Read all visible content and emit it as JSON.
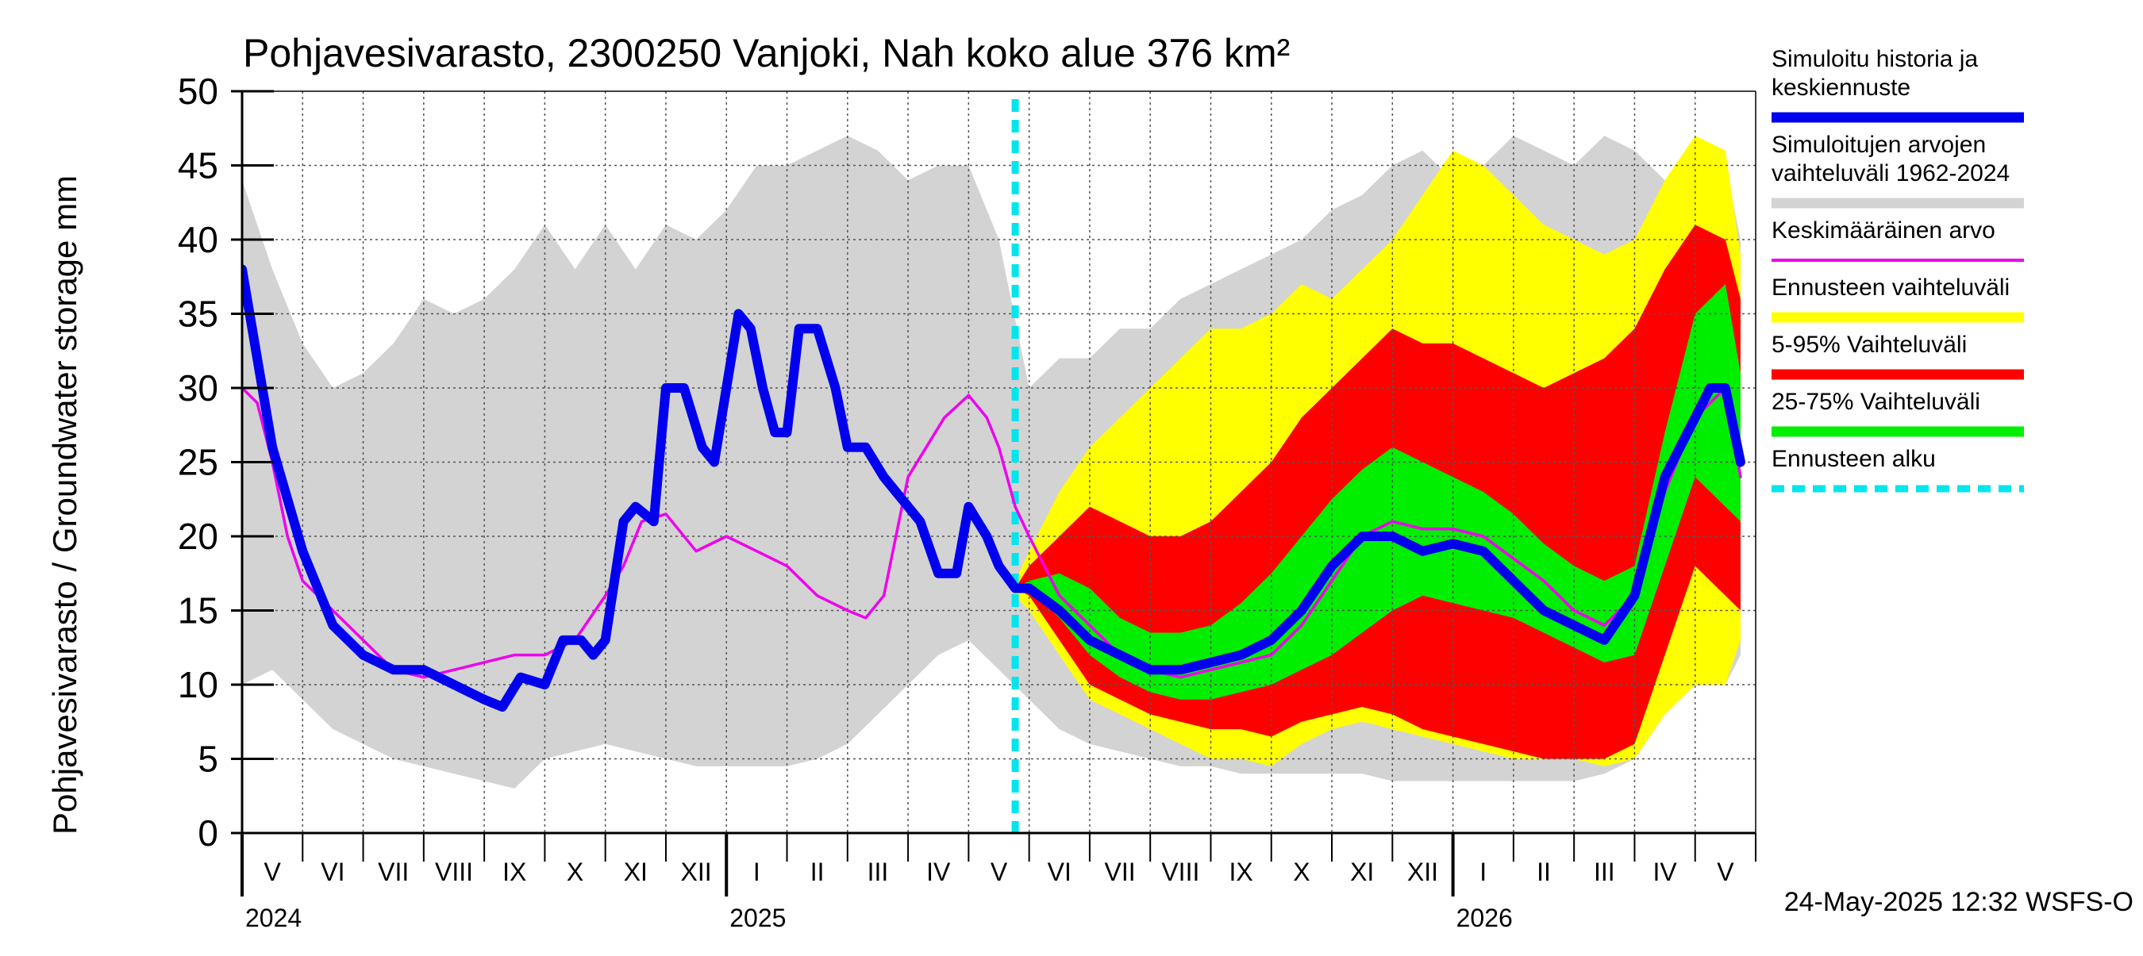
{
  "chart_data": {
    "type": "area",
    "title": "Pohjavesivarasto, 2300250 Vanjoki, Nah koko alue 376 km²",
    "ylabel": "Pohjavesivarasto / Groundwater storage   mm",
    "ylim": [
      0,
      50
    ],
    "yticks": [
      "0",
      "5",
      "10",
      "15",
      "20",
      "25",
      "30",
      "35",
      "40",
      "45",
      "50"
    ],
    "xlim_months": [
      0,
      25
    ],
    "x_unit": "months since start of May 2024",
    "month_labels": [
      "V",
      "VI",
      "VII",
      "VIII",
      "IX",
      "X",
      "XI",
      "XII",
      "I",
      "II",
      "III",
      "IV",
      "V",
      "VI",
      "VII",
      "VIII",
      "IX",
      "X",
      "XI",
      "XII",
      "I",
      "II",
      "III",
      "IV",
      "V"
    ],
    "year_labels": [
      {
        "label": "2024",
        "x": 0
      },
      {
        "label": "2025",
        "x": 8
      },
      {
        "label": "2026",
        "x": 20
      }
    ],
    "grid": true,
    "footer": "24-May-2025 12:32 WSFS-O",
    "forecast_start_x": 12.77,
    "colors": {
      "history": "#0000ee",
      "hist_range": "#d3d3d3",
      "mean": "#ee00ee",
      "ens_range": "#ffff00",
      "p5_95": "#ff0000",
      "p25_75": "#00ee00",
      "forecast_start": "#00e5ee"
    },
    "legend": {
      "placement": "right",
      "items": [
        {
          "label": "Simuloitu historia ja keskiennuste",
          "lines": [
            "Simuloitu historia ja",
            "keskiennuste"
          ],
          "color": "#0000ee",
          "style": "thick"
        },
        {
          "label": "Simuloitujen arvojen vaihteluväli 1962-2024",
          "lines": [
            "Simuloitujen arvojen",
            "vaihteluväli 1962-2024"
          ],
          "color": "#d3d3d3",
          "style": "thick"
        },
        {
          "label": "Keskimääräinen arvo",
          "lines": [
            "Keskimääräinen arvo"
          ],
          "color": "#ee00ee",
          "style": "thin"
        },
        {
          "label": "Ennusteen vaihteluväli",
          "lines": [
            "Ennusteen vaihteluväli"
          ],
          "color": "#ffff00",
          "style": "thick"
        },
        {
          "label": "5-95% Vaihteluväli",
          "lines": [
            "5-95% Vaihteluväli"
          ],
          "color": "#ff0000",
          "style": "thick"
        },
        {
          "label": "25-75% Vaihteluväli",
          "lines": [
            "25-75% Vaihteluväli"
          ],
          "color": "#00ee00",
          "style": "thick"
        },
        {
          "label": "Ennusteen alku",
          "lines": [
            "Ennusteen alku"
          ],
          "color": "#00e5ee",
          "style": "dashed"
        }
      ]
    },
    "series": [
      {
        "name": "Simuloitujen arvojen vaihteluväli 1962-2024",
        "kind": "band",
        "x": [
          0,
          0.5,
          1,
          1.5,
          2,
          2.5,
          3,
          3.5,
          4,
          4.5,
          5,
          5.5,
          6,
          6.5,
          7,
          7.5,
          8,
          8.5,
          9,
          9.5,
          10,
          10.5,
          11,
          11.5,
          12,
          12.5,
          13,
          13.5,
          14,
          14.5,
          15,
          15.5,
          16,
          16.5,
          17,
          17.5,
          18,
          18.5,
          19,
          19.5,
          20,
          20.5,
          21,
          21.5,
          22,
          22.5,
          23,
          23.5,
          24,
          24.5,
          24.75
        ],
        "low": [
          10,
          11,
          9,
          7,
          6,
          5,
          4.5,
          4,
          3.5,
          3,
          5,
          5.5,
          6,
          5.5,
          5,
          4.5,
          4.5,
          4.5,
          4.5,
          5,
          6,
          8,
          10,
          12,
          13,
          11,
          9,
          7,
          6,
          5.5,
          5,
          4.5,
          4.5,
          4,
          4,
          4,
          4,
          4,
          3.5,
          3.5,
          3.5,
          3.5,
          3.5,
          3.5,
          3.5,
          4,
          5,
          8,
          10,
          10,
          12
        ],
        "high": [
          44,
          38,
          33,
          30,
          31,
          33,
          36,
          35,
          36,
          38,
          41,
          38,
          41,
          38,
          41,
          40,
          42,
          45,
          45,
          46,
          47,
          46,
          44,
          45,
          45,
          40,
          30,
          32,
          32,
          34,
          34,
          36,
          37,
          38,
          39,
          40,
          42,
          43,
          45,
          46,
          44,
          45,
          47,
          46,
          45,
          47,
          46,
          44,
          45,
          45,
          40
        ]
      },
      {
        "name": "Ennusteen vaihteluväli",
        "kind": "band",
        "x": [
          12.77,
          13,
          13.5,
          14,
          14.5,
          15,
          15.5,
          16,
          16.5,
          17,
          17.5,
          18,
          18.5,
          19,
          19.5,
          20,
          20.5,
          21,
          21.5,
          22,
          22.5,
          23,
          23.5,
          24,
          24.5,
          24.75
        ],
        "low": [
          16,
          15,
          12,
          9,
          8,
          7,
          6,
          5,
          5,
          4.5,
          6,
          7,
          7.5,
          7,
          6.5,
          6,
          5.5,
          5,
          5,
          5,
          4.5,
          5,
          8,
          10,
          10,
          13
        ],
        "high": [
          17,
          19,
          23,
          26,
          28,
          30,
          32,
          34,
          34,
          35,
          37,
          36,
          38,
          40,
          43,
          46,
          45,
          43,
          41,
          40,
          39,
          40,
          44,
          47,
          46,
          39
        ]
      },
      {
        "name": "5-95% Vaihteluväli",
        "kind": "band",
        "x": [
          12.77,
          13,
          13.5,
          14,
          14.5,
          15,
          15.5,
          16,
          16.5,
          17,
          17.5,
          18,
          18.5,
          19,
          19.5,
          20,
          20.5,
          21,
          21.5,
          22,
          22.5,
          23,
          23.5,
          24,
          24.5,
          24.75
        ],
        "low": [
          16.5,
          16,
          13,
          10,
          9,
          8,
          7.5,
          7,
          7,
          6.5,
          7.5,
          8,
          8.5,
          8,
          7,
          6.5,
          6,
          5.5,
          5,
          5,
          5,
          6,
          12,
          18,
          16,
          15
        ],
        "high": [
          16.5,
          18,
          20,
          22,
          21,
          20,
          20,
          21,
          23,
          25,
          28,
          30,
          32,
          34,
          33,
          33,
          32,
          31,
          30,
          31,
          32,
          34,
          38,
          41,
          40,
          36
        ]
      },
      {
        "name": "25-75% Vaihteluväli",
        "kind": "band",
        "x": [
          12.77,
          13,
          13.5,
          14,
          14.5,
          15,
          15.5,
          16,
          16.5,
          17,
          17.5,
          18,
          18.5,
          19,
          19.5,
          20,
          20.5,
          21,
          21.5,
          22,
          22.5,
          23,
          23.5,
          24,
          24.5,
          24.75
        ],
        "low": [
          16.5,
          16.5,
          14.5,
          12,
          10.5,
          9.5,
          9,
          9,
          9.5,
          10,
          11,
          12,
          13.5,
          15,
          16,
          15.5,
          15,
          14.5,
          13.5,
          12.5,
          11.5,
          12,
          18,
          24,
          22,
          21
        ],
        "high": [
          16.5,
          17,
          17.5,
          16.5,
          14.5,
          13.5,
          13.5,
          14,
          15.5,
          17.5,
          20,
          22.5,
          24.5,
          26,
          25,
          24,
          23,
          21.5,
          19.5,
          18,
          17,
          18,
          27,
          35,
          37,
          31
        ]
      },
      {
        "name": "Keskimääräinen arvo",
        "kind": "line",
        "x": [
          0,
          0.25,
          0.5,
          0.75,
          1,
          1.25,
          1.5,
          2,
          2.5,
          3,
          3.5,
          4,
          4.5,
          5,
          5.5,
          6,
          6.3,
          6.6,
          7,
          7.5,
          8,
          8.5,
          9,
          9.5,
          10,
          10.3,
          10.6,
          11,
          11.3,
          11.6,
          12,
          12.3,
          12.5,
          12.77,
          13,
          13.5,
          14,
          14.5,
          15,
          15.5,
          16,
          16.5,
          17,
          17.5,
          18,
          18.5,
          19,
          19.5,
          20,
          20.5,
          21,
          21.5,
          22,
          22.5,
          23,
          23.5,
          24,
          24.25,
          24.5,
          24.75
        ],
        "y": [
          30,
          29,
          25,
          20,
          17,
          16,
          15,
          13,
          11,
          10.5,
          11,
          11.5,
          12,
          12,
          13,
          16,
          18,
          21,
          21.5,
          19,
          20,
          19,
          18,
          16,
          15,
          14.5,
          16,
          24,
          26,
          28,
          29.5,
          28,
          26,
          22,
          20,
          16,
          14,
          12,
          11,
          10.5,
          11,
          11.5,
          12,
          14,
          17,
          20,
          21,
          20.5,
          20.5,
          20,
          18.5,
          17,
          15,
          14,
          16,
          23,
          28,
          29,
          30,
          24
        ]
      },
      {
        "name": "Simuloitu historia ja keskiennuste",
        "kind": "line",
        "x": [
          0,
          0.25,
          0.5,
          1,
          1.5,
          2,
          2.5,
          3,
          3.5,
          4,
          4.3,
          4.6,
          5,
          5.3,
          5.6,
          5.8,
          6,
          6.3,
          6.5,
          6.8,
          7,
          7.3,
          7.6,
          7.8,
          8,
          8.2,
          8.4,
          8.6,
          8.8,
          9,
          9.2,
          9.5,
          9.8,
          10,
          10.3,
          10.6,
          10.8,
          11,
          11.2,
          11.5,
          11.8,
          12,
          12.3,
          12.5,
          12.77,
          13,
          13.5,
          14,
          14.5,
          15,
          15.5,
          16,
          16.5,
          17,
          17.5,
          18,
          18.5,
          19,
          19.5,
          20,
          20.5,
          21,
          21.5,
          22,
          22.5,
          23,
          23.5,
          24,
          24.25,
          24.5,
          24.75
        ],
        "y": [
          38,
          32,
          26,
          19,
          14,
          12,
          11,
          11,
          10,
          9,
          8.5,
          10.5,
          10,
          13,
          13,
          12,
          13,
          21,
          22,
          21,
          30,
          30,
          26,
          25,
          30,
          35,
          34,
          30,
          27,
          27,
          34,
          34,
          30,
          26,
          26,
          24,
          23,
          22,
          21,
          17.5,
          17.5,
          22,
          20,
          18,
          16.5,
          16.5,
          15,
          13,
          12,
          11,
          11,
          11.5,
          12,
          13,
          15,
          18,
          20,
          20,
          19,
          19.5,
          19,
          17,
          15,
          14,
          13,
          16,
          24,
          28,
          30,
          30,
          25
        ]
      }
    ]
  }
}
